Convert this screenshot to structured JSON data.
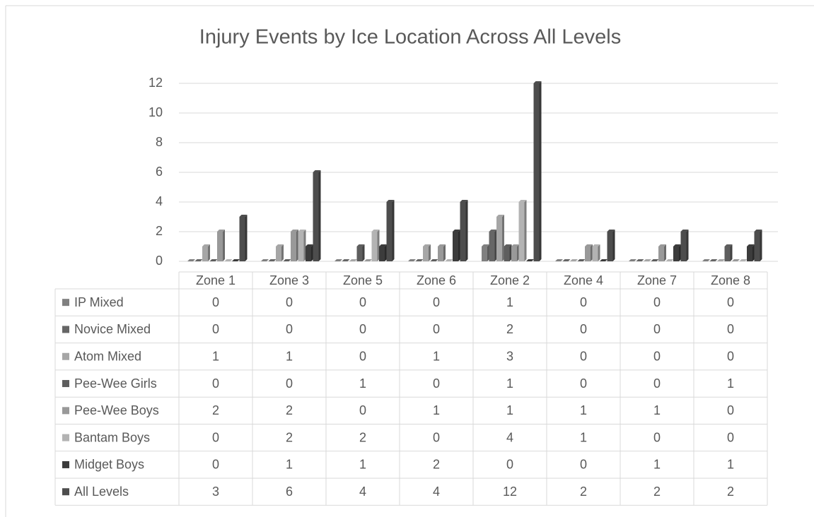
{
  "chart_data": {
    "type": "bar",
    "title": "Injury Events by Ice Location Across All Levels",
    "categories": [
      "Zone 1",
      "Zone 3",
      "Zone 5",
      "Zone 6",
      "Zone 2",
      "Zone 4",
      "Zone 7",
      "Zone 8"
    ],
    "series": [
      {
        "name": "IP Mixed",
        "color": "#808080",
        "values": [
          0,
          0,
          0,
          0,
          1,
          0,
          0,
          0
        ]
      },
      {
        "name": "Novice Mixed",
        "color": "#666666",
        "values": [
          0,
          0,
          0,
          0,
          2,
          0,
          0,
          0
        ]
      },
      {
        "name": "Atom Mixed",
        "color": "#a6a6a6",
        "values": [
          1,
          1,
          0,
          1,
          3,
          0,
          0,
          0
        ]
      },
      {
        "name": "Pee-Wee Girls",
        "color": "#5e5e5e",
        "values": [
          0,
          0,
          1,
          0,
          1,
          0,
          0,
          1
        ]
      },
      {
        "name": "Pee-Wee Boys",
        "color": "#999999",
        "values": [
          2,
          2,
          0,
          1,
          1,
          1,
          1,
          0
        ]
      },
      {
        "name": "Bantam Boys",
        "color": "#b3b3b3",
        "values": [
          0,
          2,
          2,
          0,
          4,
          1,
          0,
          0
        ]
      },
      {
        "name": "Midget Boys",
        "color": "#3c3c3c",
        "values": [
          0,
          1,
          1,
          2,
          0,
          0,
          1,
          1
        ]
      },
      {
        "name": "All Levels",
        "color": "#4d4d4d",
        "values": [
          3,
          6,
          4,
          4,
          12,
          2,
          2,
          2
        ]
      }
    ],
    "ylim": [
      0,
      12
    ],
    "yticks": [
      0,
      2,
      4,
      6,
      8,
      10,
      12
    ],
    "grid": true
  }
}
